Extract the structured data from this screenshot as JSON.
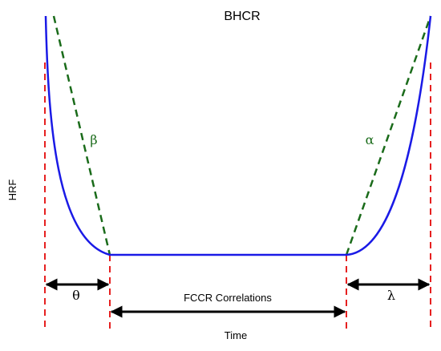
{
  "title": "BHCR",
  "ylabel": "HRF",
  "xlabel": "Time",
  "labels": {
    "beta": "β",
    "alpha": "α",
    "theta": "θ",
    "lambda": "λ",
    "middle": "FCCR Correlations"
  },
  "colors": {
    "curve": "#1a1ae6",
    "tangent": "#1a6b1a",
    "guide": "#e62020",
    "arrow": "#000000"
  }
}
